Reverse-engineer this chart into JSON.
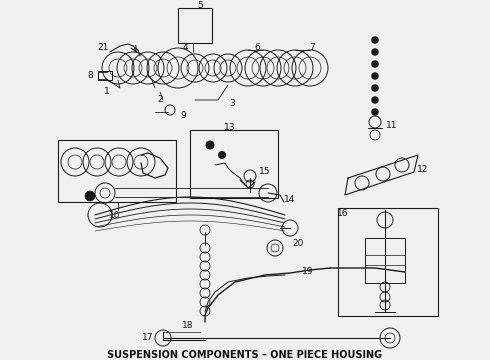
{
  "title": "SUSPENSION COMPONENTS – ONE PIECE HOUSING",
  "title_fontsize": 7.0,
  "title_fontweight": "bold",
  "bg_color": "#f5f5f5",
  "fig_width": 4.9,
  "fig_height": 3.6,
  "dpi": 100,
  "line_color": "#1a1a1a",
  "lw": 0.7
}
